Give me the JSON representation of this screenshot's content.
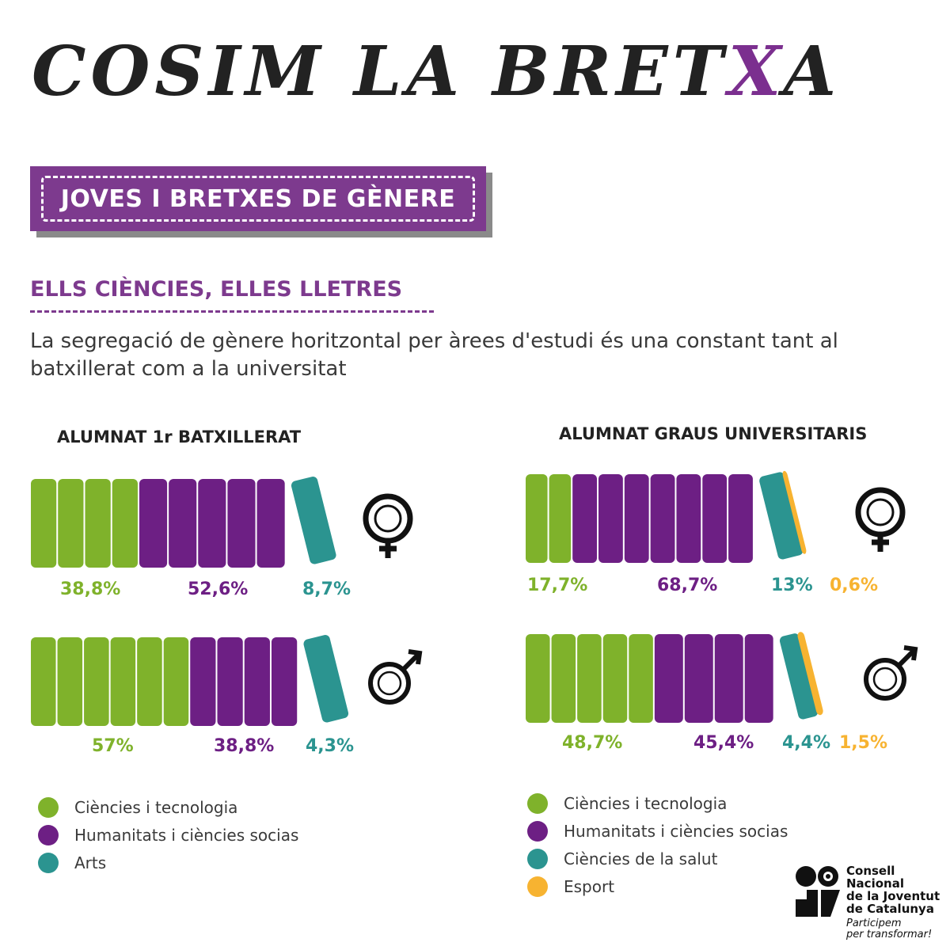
{
  "header": {
    "title_main": "COSIM LA BRET",
    "title_x": "X",
    "title_end": "A",
    "banner": "JOVES I BRETXES DE GÈNERE",
    "subtitle": "ELLS CIÈNCIES, ELLES LLETRES",
    "description": "La segregació de gènere horitzontal per àrees d'estudi és una constant tant al batxillerat com a la universitat"
  },
  "colors": {
    "ciencies": "#7fb22b",
    "humanitats": "#6d1f84",
    "arts": "#2b9490",
    "salut": "#2b9490",
    "esport": "#f7b331",
    "accent": "#7d3a8e"
  },
  "chart_data": [
    {
      "type": "bar",
      "title": "ALUMNAT 1r BATXILLERAT",
      "categories": [
        "female",
        "male"
      ],
      "series": [
        {
          "name": "Ciències i tecnologia",
          "values": [
            38.8,
            57
          ]
        },
        {
          "name": "Humanitats i ciències socias",
          "values": [
            52.6,
            38.8
          ]
        },
        {
          "name": "Arts",
          "values": [
            8.7,
            4.3
          ]
        }
      ],
      "labels": [
        [
          "38,8%",
          "52,6%",
          "8,7%"
        ],
        [
          "57%",
          "38,8%",
          "4,3%"
        ]
      ],
      "legend": [
        "Ciències i tecnologia",
        "Humanitats i ciències socias",
        "Arts"
      ]
    },
    {
      "type": "bar",
      "title": "ALUMNAT GRAUS UNIVERSITARIS",
      "categories": [
        "female",
        "male"
      ],
      "series": [
        {
          "name": "Ciències i tecnologia",
          "values": [
            17.7,
            48.7
          ]
        },
        {
          "name": "Humanitats i ciències socias",
          "values": [
            68.7,
            45.4
          ]
        },
        {
          "name": "Ciències de la salut",
          "values": [
            13,
            4.4
          ]
        },
        {
          "name": "Esport",
          "values": [
            0.6,
            1.5
          ]
        }
      ],
      "labels": [
        [
          "17,7%",
          "68,7%",
          "13%",
          "0,6%"
        ],
        [
          "48,7%",
          "45,4%",
          "4,4%",
          "1,5%"
        ]
      ],
      "legend": [
        "Ciències i tecnologia",
        "Humanitats i ciències socias",
        "Ciències de la salut",
        "Esport"
      ]
    }
  ],
  "logo": {
    "line1": "Consell",
    "line2": "Nacional",
    "line3": "de la Joventut",
    "line4": "de Catalunya",
    "tag1": "Participem",
    "tag2": "per transformar!"
  }
}
